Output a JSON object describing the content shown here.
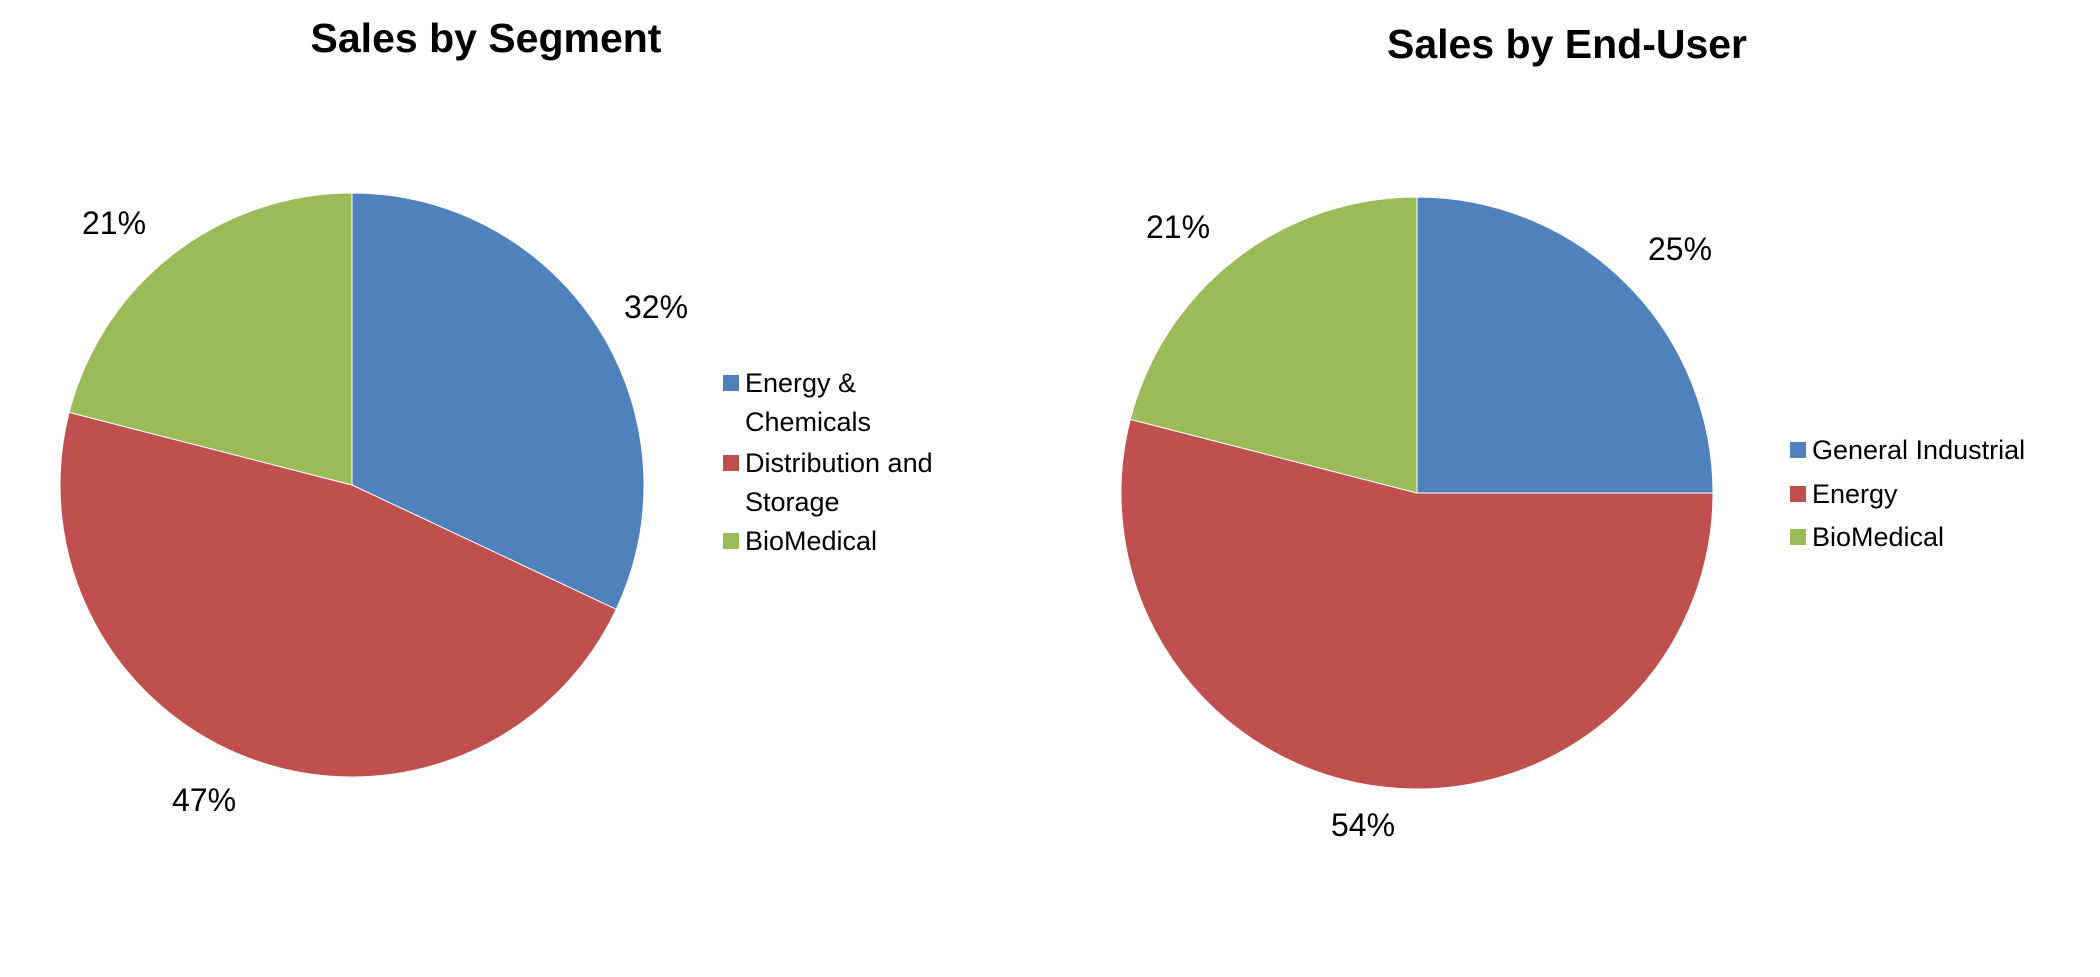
{
  "chart_data": [
    {
      "type": "pie",
      "title": "Sales by Segment",
      "legend_position": "right",
      "start": "top-clockwise",
      "slices": [
        {
          "label": "Energy & Chemicals",
          "legend_lines": [
            "Energy &",
            "Chemicals"
          ],
          "value": 32,
          "data_label": "32%",
          "color": "#4F81BD"
        },
        {
          "label": "Distribution and Storage",
          "legend_lines": [
            "Distribution and",
            "Storage"
          ],
          "value": 47,
          "data_label": "47%",
          "color": "#C0504D"
        },
        {
          "label": "BioMedical",
          "legend_lines": [
            "BioMedical"
          ],
          "value": 21,
          "data_label": "21%",
          "color": "#9BBB59"
        }
      ]
    },
    {
      "type": "pie",
      "title": "Sales by End-User",
      "legend_position": "right",
      "start": "top-clockwise",
      "slices": [
        {
          "label": "General Industrial",
          "legend_lines": [
            "General Industrial"
          ],
          "value": 25,
          "data_label": "25%",
          "color": "#4F81BD"
        },
        {
          "label": "Energy",
          "legend_lines": [
            "Energy"
          ],
          "value": 54,
          "data_label": "54%",
          "color": "#C0504D"
        },
        {
          "label": "BioMedical",
          "legend_lines": [
            "BioMedical"
          ],
          "value": 21,
          "data_label": "21%",
          "color": "#9BBB59"
        }
      ]
    }
  ]
}
